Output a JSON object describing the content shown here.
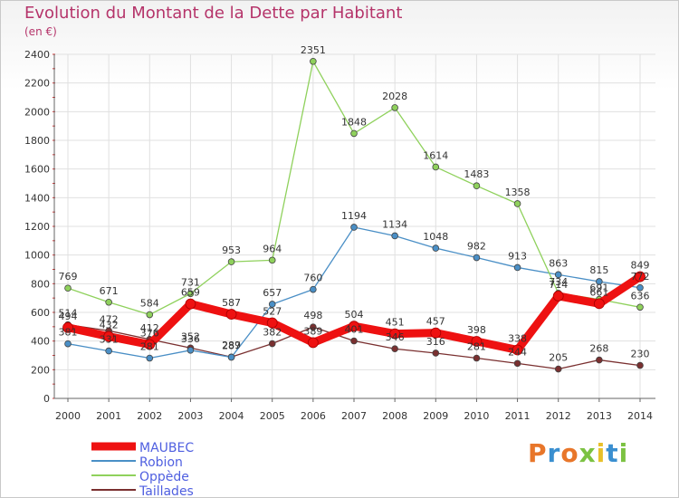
{
  "header": {
    "title": "Evolution du Montant de la Dette par Habitant",
    "subtitle": "(en €)"
  },
  "logo": {
    "text": "Proxiti"
  },
  "colors": {
    "title": "#b5346a",
    "axis": "#333333",
    "grid": "#e0e0e0"
  },
  "chart_data": {
    "type": "line",
    "title": "Evolution du Montant de la Dette par Habitant",
    "subtitle": "(en €)",
    "xlabel": "",
    "ylabel": "",
    "x": [
      2000,
      2001,
      2002,
      2003,
      2004,
      2005,
      2006,
      2007,
      2008,
      2009,
      2010,
      2011,
      2012,
      2013,
      2014
    ],
    "ylim": [
      0,
      2400
    ],
    "yticks": [
      0,
      200,
      400,
      600,
      800,
      1000,
      1200,
      1400,
      1600,
      1800,
      2000,
      2200,
      2400
    ],
    "grid": true,
    "legend_position": "bottom-left",
    "series": [
      {
        "name": "MAUBEC",
        "color": "#ee1111",
        "values": [
          494,
          432,
          376,
          659,
          587,
          527,
          389,
          504,
          451,
          457,
          398,
          338,
          714,
          661,
          849
        ],
        "labels": [
          "494",
          "432",
          "376",
          "659",
          "587",
          "527",
          "389",
          "504",
          "451",
          "457",
          "398",
          "338",
          "714",
          "661",
          "849"
        ]
      },
      {
        "name": "Robion",
        "color": "#4a8fc6",
        "values": [
          381,
          331,
          281,
          336,
          287,
          657,
          760,
          1194,
          1134,
          1048,
          982,
          913,
          863,
          815,
          772
        ],
        "labels": [
          "381",
          "331",
          "281",
          "336",
          "287",
          "657",
          "760",
          "1194",
          "1134",
          "1048",
          "982",
          "913",
          "863",
          "815",
          "772"
        ]
      },
      {
        "name": "Oppède",
        "color": "#8fd15c",
        "values": [
          769,
          671,
          584,
          731,
          953,
          964,
          2351,
          1848,
          2028,
          1614,
          1483,
          1358,
          734,
          691,
          636
        ],
        "labels": [
          "769",
          "671",
          "584",
          "731",
          "953",
          "964",
          "2351",
          "1848",
          "2028",
          "1614",
          "1483",
          "1358",
          "734",
          "691",
          "636"
        ]
      },
      {
        "name": "Taillades",
        "color": "#7a3030",
        "values": [
          514,
          472,
          412,
          352,
          289,
          382,
          498,
          401,
          346,
          316,
          281,
          244,
          205,
          268,
          230
        ],
        "labels": [
          "514",
          "472",
          "412",
          "352",
          "289",
          "382",
          "498",
          "401",
          "346",
          "316",
          "281",
          "244",
          "205",
          "268",
          "230"
        ]
      }
    ]
  }
}
